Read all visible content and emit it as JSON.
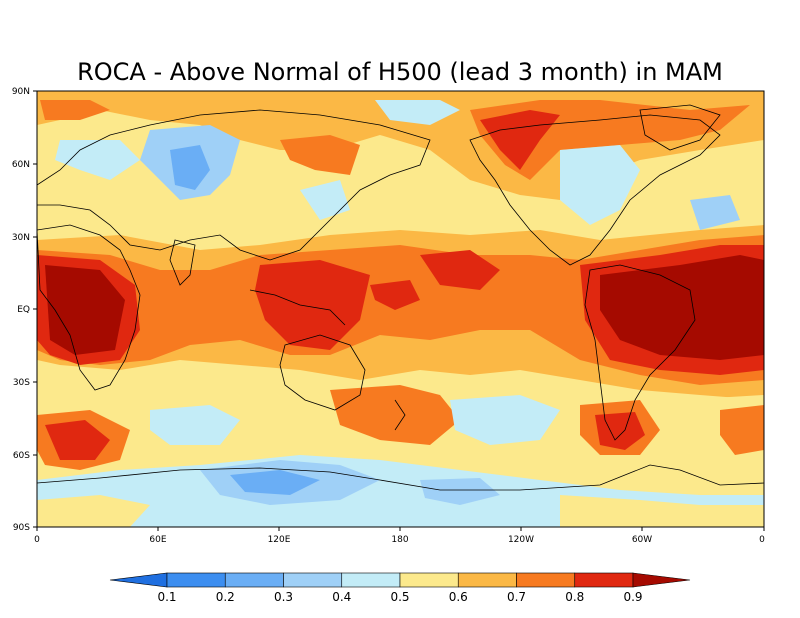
{
  "title": "ROCA - Above Normal of H500 (lead 3 month) in MAM",
  "lat_ticks": [
    "90N",
    "60N",
    "30N",
    "EQ",
    "30S",
    "60S",
    "90S"
  ],
  "lon_ticks": [
    "0",
    "60E",
    "120E",
    "180",
    "120W",
    "60W",
    "0"
  ],
  "colorbar": {
    "labels": [
      "0.1",
      "0.2",
      "0.3",
      "0.4",
      "0.5",
      "0.6",
      "0.7",
      "0.8",
      "0.9"
    ],
    "colors": [
      "#1f6fe0",
      "#3c8ef0",
      "#6aaef5",
      "#9fd0f7",
      "#c3ecf7",
      "#fce98c",
      "#fbb845",
      "#f77a20",
      "#e02810",
      "#a50a00"
    ]
  },
  "chart_data": {
    "type": "heatmap",
    "title": "ROCA - Above Normal of H500 (lead 3 month) in MAM",
    "x_ticks": [
      "0",
      "60E",
      "120E",
      "180",
      "120W",
      "60W",
      "0"
    ],
    "y_ticks": [
      "90N",
      "60N",
      "30N",
      "EQ",
      "30S",
      "60S",
      "90S"
    ],
    "xlim": [
      0,
      360
    ],
    "ylim": [
      -90,
      90
    ],
    "levels": [
      0.1,
      0.2,
      0.3,
      0.4,
      0.5,
      0.6,
      0.7,
      0.8,
      0.9
    ]
  }
}
